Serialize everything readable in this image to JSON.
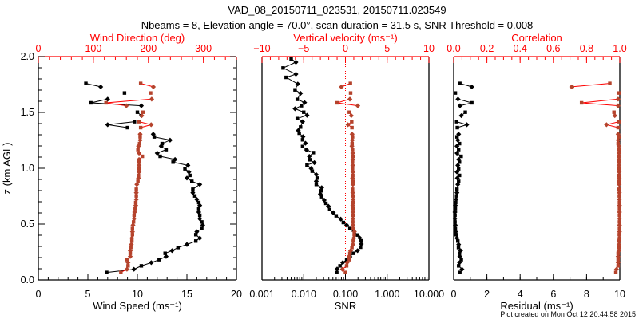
{
  "chart_data": {
    "type": "line",
    "title": "VAD_08_20150711_023531, 20150711.023549",
    "subtitle": "Nbeams = 8, Elevation angle = 70.0°, scan duration = 31.5 s, SNR Threshold = 0.008",
    "ylabel": "z (km AGL)",
    "ylim": [
      0,
      2
    ],
    "yticks": [
      0,
      0.5,
      1.0,
      1.5,
      2.0
    ],
    "ytick_labels": [
      "0.0",
      "0.5",
      "1.0",
      "1.5",
      "2.0"
    ],
    "footer": "Plot created on Mon Oct 12 20:44:58 2015",
    "colors": {
      "primary": "#000000",
      "secondary_marker": "#b5432c",
      "secondary_line": "#ff0000",
      "secondary_axis": "#ff0000"
    },
    "panels": [
      {
        "id": "wind",
        "bottom": {
          "label": "Wind Speed (ms⁻¹)",
          "scale": "linear",
          "min": 0,
          "max": 20,
          "major": [
            0,
            5,
            10,
            15,
            20
          ],
          "labels": [
            "0",
            "5",
            "10",
            "15",
            "20"
          ],
          "minor_step": 1
        },
        "top": {
          "label": "Wind Direction (deg)",
          "scale": "linear",
          "min": 0,
          "max": 360,
          "major": [
            0,
            100,
            200,
            300
          ],
          "labels": [
            "0",
            "100",
            "200",
            "300"
          ],
          "minor_step": 20
        },
        "series": [
          {
            "name": "Wind Speed",
            "axis": "bottom",
            "color": "#000000",
            "line": "#000000",
            "break_gaps": true,
            "h": [
              0.067,
              0.095,
              0.126,
              0.155,
              0.181,
              0.21,
              0.238,
              0.262,
              0.29,
              0.317,
              0.348,
              0.374,
              0.405,
              0.431,
              0.46,
              0.49,
              0.519,
              0.548,
              0.579,
              0.607,
              0.638,
              0.667,
              0.693,
              0.721,
              0.752,
              0.781,
              0.812,
              0.855,
              0.883,
              0.912,
              0.936,
              0.967,
              0.995,
              1.026,
              1.055,
              1.079,
              1.107,
              1.136,
              1.167,
              1.198,
              1.221,
              1.252,
              1.281,
              1.305,
              1.364,
              1.39,
              1.417,
              1.471,
              1.502,
              1.56,
              1.586,
              1.619,
              1.674,
              1.729,
              1.76
            ],
            "values": [
              6.9,
              9.65,
              10.4,
              11.4,
              12.2,
              12.9,
              12.8,
              13.5,
              14.1,
              15.0,
              15.9,
              16.3,
              15.9,
              16.0,
              16.5,
              16.6,
              16.5,
              16.3,
              16.3,
              16.2,
              16.2,
              16.3,
              16.2,
              16.0,
              15.8,
              15.6,
              15.6,
              16.3,
              15.5,
              15.0,
              15.3,
              15.2,
              14.8,
              15.1,
              13.6,
              13.8,
              12.3,
              12.0,
              12.9,
              12.4,
              12.5,
              13.3,
              11.7,
              11.6,
              9.0,
              7.0,
              9.7,
              10.4,
              10.0,
              10.4,
              5.3,
              7.0,
              8.7,
              6.3,
              4.8
            ]
          },
          {
            "name": "Wind Direction",
            "axis": "top",
            "color": "#b5432c",
            "line": "#ff0000",
            "break_gaps": true,
            "h": [
              0.067,
              0.095,
              0.126,
              0.155,
              0.181,
              0.21,
              0.238,
              0.262,
              0.29,
              0.317,
              0.348,
              0.374,
              0.405,
              0.431,
              0.46,
              0.49,
              0.519,
              0.548,
              0.579,
              0.607,
              0.638,
              0.667,
              0.693,
              0.721,
              0.752,
              0.781,
              0.812,
              0.855,
              0.883,
              0.912,
              0.936,
              0.967,
              0.995,
              1.026,
              1.055,
              1.079,
              1.107,
              1.136,
              1.167,
              1.198,
              1.221,
              1.252,
              1.281,
              1.305,
              1.364,
              1.39,
              1.417,
              1.471,
              1.502,
              1.56,
              1.586,
              1.619,
              1.674,
              1.729,
              1.76
            ],
            "values": [
              150,
              161,
              163,
              163,
              161,
              167,
              167,
              167,
              168,
              169,
              170,
              170,
              171,
              171,
              171,
              172,
              173,
              174,
              174,
              175,
              176,
              177,
              177,
              178,
              178,
              178,
              178,
              179,
              181,
              182,
              182,
              183,
              183,
              183,
              183,
              183,
              189,
              183,
              181,
              182,
              184,
              185,
              185,
              185,
              186,
              205,
              183,
              188,
              190,
              160,
              123,
              206,
              204,
              209,
              186
            ]
          }
        ]
      },
      {
        "id": "snr",
        "bottom": {
          "label": "SNR",
          "scale": "log",
          "min": 0.001,
          "max": 10,
          "major": [
            0.001,
            0.01,
            0.1,
            1,
            10
          ],
          "labels": [
            "0.001",
            "0.010",
            "0.100",
            "1.000",
            "10.000"
          ]
        },
        "top": {
          "label": "Vertical velocity (ms⁻¹)",
          "scale": "linear",
          "min": -10,
          "max": 10,
          "major": [
            -10,
            -5,
            0,
            5,
            10
          ],
          "labels": [
            "−10",
            "−5",
            "0",
            "5",
            "10"
          ],
          "minor_step": 1
        },
        "reference_line": {
          "axis": "top",
          "value": 0
        },
        "series": [
          {
            "name": "SNR",
            "axis": "bottom",
            "color": "#000000",
            "line": "#000000",
            "break_gaps": false,
            "h": [
              0.066,
              0.097,
              0.126,
              0.155,
              0.179,
              0.207,
              0.238,
              0.262,
              0.293,
              0.321,
              0.35,
              0.376,
              0.402,
              0.436,
              0.46,
              0.49,
              0.514,
              0.545,
              0.574,
              0.602,
              0.631,
              0.66,
              0.686,
              0.714,
              0.745,
              0.769,
              0.798,
              0.826,
              0.855,
              0.883,
              0.912,
              0.943,
              0.974,
              0.998,
              1.03,
              1.05,
              1.076,
              1.106,
              1.14,
              1.164,
              1.195,
              1.224,
              1.255,
              1.283,
              1.314,
              1.338,
              1.369,
              1.417,
              1.445,
              1.474,
              1.502,
              1.533,
              1.56,
              1.588,
              1.617,
              1.671,
              1.702,
              1.755,
              1.814,
              1.843,
              1.898,
              1.95,
              1.98
            ],
            "values": [
              0.062,
              0.063,
              0.074,
              0.086,
              0.107,
              0.128,
              0.155,
              0.195,
              0.23,
              0.24,
              0.237,
              0.22,
              0.195,
              0.16,
              0.128,
              0.107,
              0.089,
              0.077,
              0.06,
              0.051,
              0.042,
              0.039,
              0.034,
              0.031,
              0.027,
              0.025,
              0.026,
              0.027,
              0.02,
              0.02,
              0.021,
              0.02,
              0.016,
              0.015,
              0.012,
              0.018,
              0.014,
              0.0136,
              0.017,
              0.0117,
              0.0094,
              0.011,
              0.0094,
              0.0096,
              0.0078,
              0.0074,
              0.0084,
              0.0094,
              0.007,
              0.012,
              0.01,
              0.0062,
              0.0088,
              0.0105,
              0.007,
              0.0084,
              0.0062,
              0.0072,
              0.0038,
              0.0065,
              0.0032,
              0.0065,
              0.005
            ]
          },
          {
            "name": "Vertical velocity",
            "axis": "top",
            "color": "#b5432c",
            "line": "#ff0000",
            "break_gaps": true,
            "h": [
              0.067,
              0.095,
              0.126,
              0.155,
              0.181,
              0.21,
              0.238,
              0.262,
              0.29,
              0.317,
              0.348,
              0.374,
              0.405,
              0.431,
              0.46,
              0.49,
              0.519,
              0.548,
              0.579,
              0.607,
              0.638,
              0.667,
              0.693,
              0.721,
              0.752,
              0.781,
              0.812,
              0.855,
              0.883,
              0.912,
              0.936,
              0.967,
              0.995,
              1.026,
              1.055,
              1.079,
              1.107,
              1.136,
              1.167,
              1.198,
              1.221,
              1.252,
              1.281,
              1.305,
              1.364,
              1.39,
              1.417,
              1.471,
              1.502,
              1.56,
              1.586,
              1.619,
              1.674,
              1.729,
              1.76
            ],
            "values": [
              0.0,
              -0.37,
              0.14,
              0.2,
              0.46,
              0.43,
              0.53,
              0.62,
              0.78,
              0.9,
              0.94,
              1.0,
              1.05,
              1.07,
              0.94,
              0.9,
              0.88,
              0.9,
              0.92,
              0.9,
              0.9,
              0.88,
              0.9,
              0.92,
              0.9,
              0.88,
              0.85,
              0.9,
              0.92,
              0.85,
              0.88,
              0.9,
              0.85,
              0.88,
              0.85,
              0.88,
              0.9,
              0.88,
              0.85,
              0.78,
              0.8,
              0.82,
              0.85,
              0.8,
              0.78,
              0.3,
              0.75,
              0.7,
              0.46,
              1.48,
              -1.0,
              0.53,
              0.62,
              -0.49,
              0.59
            ]
          }
        ]
      },
      {
        "id": "residual",
        "bottom": {
          "label": "Residual (ms⁻¹)",
          "scale": "linear",
          "min": 0,
          "max": 10,
          "major": [
            0,
            2,
            4,
            6,
            8,
            10
          ],
          "labels": [
            "0",
            "2",
            "4",
            "6",
            "8",
            "10"
          ],
          "minor_step": 1
        },
        "top": {
          "label": "Correlation",
          "scale": "linear",
          "min": 0,
          "max": 1,
          "major": [
            0,
            0.2,
            0.4,
            0.6,
            0.8,
            1.0
          ],
          "labels": [
            "0.0",
            "0.2",
            "0.4",
            "0.6",
            "0.8",
            "1.0"
          ],
          "minor_step": 0.05
        },
        "series": [
          {
            "name": "Residual",
            "axis": "bottom",
            "color": "#000000",
            "line": "#000000",
            "break_gaps": true,
            "h": [
              0.067,
              0.095,
              0.126,
              0.155,
              0.181,
              0.21,
              0.238,
              0.262,
              0.29,
              0.317,
              0.348,
              0.374,
              0.405,
              0.431,
              0.46,
              0.49,
              0.519,
              0.548,
              0.579,
              0.607,
              0.638,
              0.667,
              0.693,
              0.721,
              0.752,
              0.781,
              0.812,
              0.855,
              0.883,
              0.912,
              0.936,
              0.967,
              0.995,
              1.026,
              1.055,
              1.079,
              1.107,
              1.136,
              1.167,
              1.198,
              1.221,
              1.252,
              1.281,
              1.305,
              1.364,
              1.39,
              1.417,
              1.471,
              1.502,
              1.56,
              1.586,
              1.619,
              1.674,
              1.729,
              1.76
            ],
            "values": [
              0.37,
              0.5,
              0.3,
              0.35,
              0.46,
              0.37,
              0.35,
              0.42,
              0.29,
              0.3,
              0.25,
              0.2,
              0.15,
              0.12,
              0.1,
              0.1,
              0.08,
              0.08,
              0.08,
              0.08,
              0.1,
              0.1,
              0.12,
              0.15,
              0.18,
              0.2,
              0.2,
              0.25,
              0.3,
              0.22,
              0.35,
              0.2,
              0.3,
              0.25,
              0.35,
              0.3,
              0.45,
              0.2,
              0.3,
              0.2,
              0.35,
              0.25,
              0.2,
              0.3,
              0.22,
              0.79,
              0.18,
              0.46,
              0.7,
              0.38,
              1.09,
              0.26,
              0.1,
              1.09,
              0.37
            ]
          },
          {
            "name": "Correlation",
            "axis": "top",
            "color": "#b5432c",
            "line": "#ff0000",
            "break_gaps": true,
            "h": [
              0.067,
              0.095,
              0.126,
              0.155,
              0.181,
              0.21,
              0.238,
              0.262,
              0.29,
              0.317,
              0.348,
              0.374,
              0.405,
              0.431,
              0.46,
              0.49,
              0.519,
              0.548,
              0.579,
              0.607,
              0.638,
              0.667,
              0.693,
              0.721,
              0.752,
              0.781,
              0.812,
              0.855,
              0.883,
              0.912,
              0.936,
              0.967,
              0.995,
              1.026,
              1.055,
              1.079,
              1.107,
              1.136,
              1.167,
              1.198,
              1.221,
              1.252,
              1.281,
              1.305,
              1.364,
              1.39,
              1.417,
              1.471,
              1.502,
              1.56,
              1.586,
              1.619,
              1.674,
              1.729,
              1.76
            ],
            "values": [
              0.976,
              0.98,
              0.99,
              0.99,
              0.99,
              0.99,
              0.99,
              0.995,
              0.995,
              0.995,
              0.995,
              0.997,
              0.997,
              0.998,
              0.998,
              0.998,
              0.998,
              0.998,
              0.998,
              0.998,
              0.998,
              0.998,
              0.998,
              0.997,
              0.997,
              0.997,
              0.996,
              0.996,
              0.995,
              0.996,
              0.995,
              0.996,
              0.995,
              0.995,
              0.995,
              0.995,
              0.994,
              0.995,
              0.995,
              0.995,
              0.99,
              0.99,
              0.995,
              0.99,
              0.99,
              0.92,
              0.995,
              0.97,
              0.965,
              0.99,
              0.77,
              0.99,
              0.995,
              0.71,
              0.94
            ]
          }
        ]
      }
    ]
  }
}
